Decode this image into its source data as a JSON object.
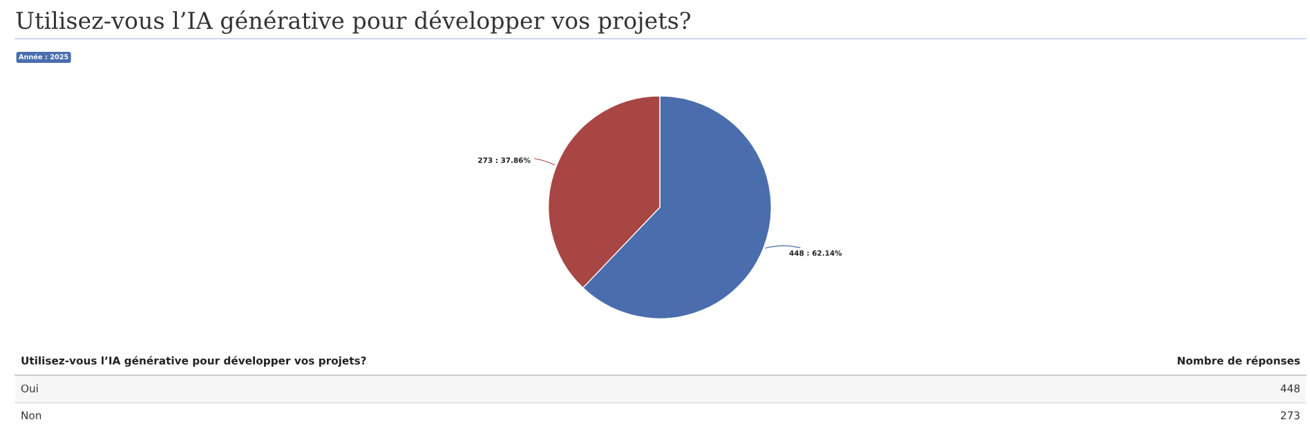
{
  "chart_data": {
    "type": "pie",
    "title": "Utilisez-vous l’IA générative pour développer vos projets?",
    "subtitle": "Année : 2025",
    "categories": [
      null,
      null
    ],
    "values": [
      448,
      273
    ],
    "colors": [
      "#4a6dad",
      "#a84644"
    ],
    "value_labels": [
      "448 : 62.14%",
      "273 : 37.86%"
    ],
    "annotations": [
      "Utilisez-vous l’IA générative pour développer vos projets?",
      "Nombre de réponses",
      "Oui",
      "448",
      "Non",
      "273"
    ]
  }
}
